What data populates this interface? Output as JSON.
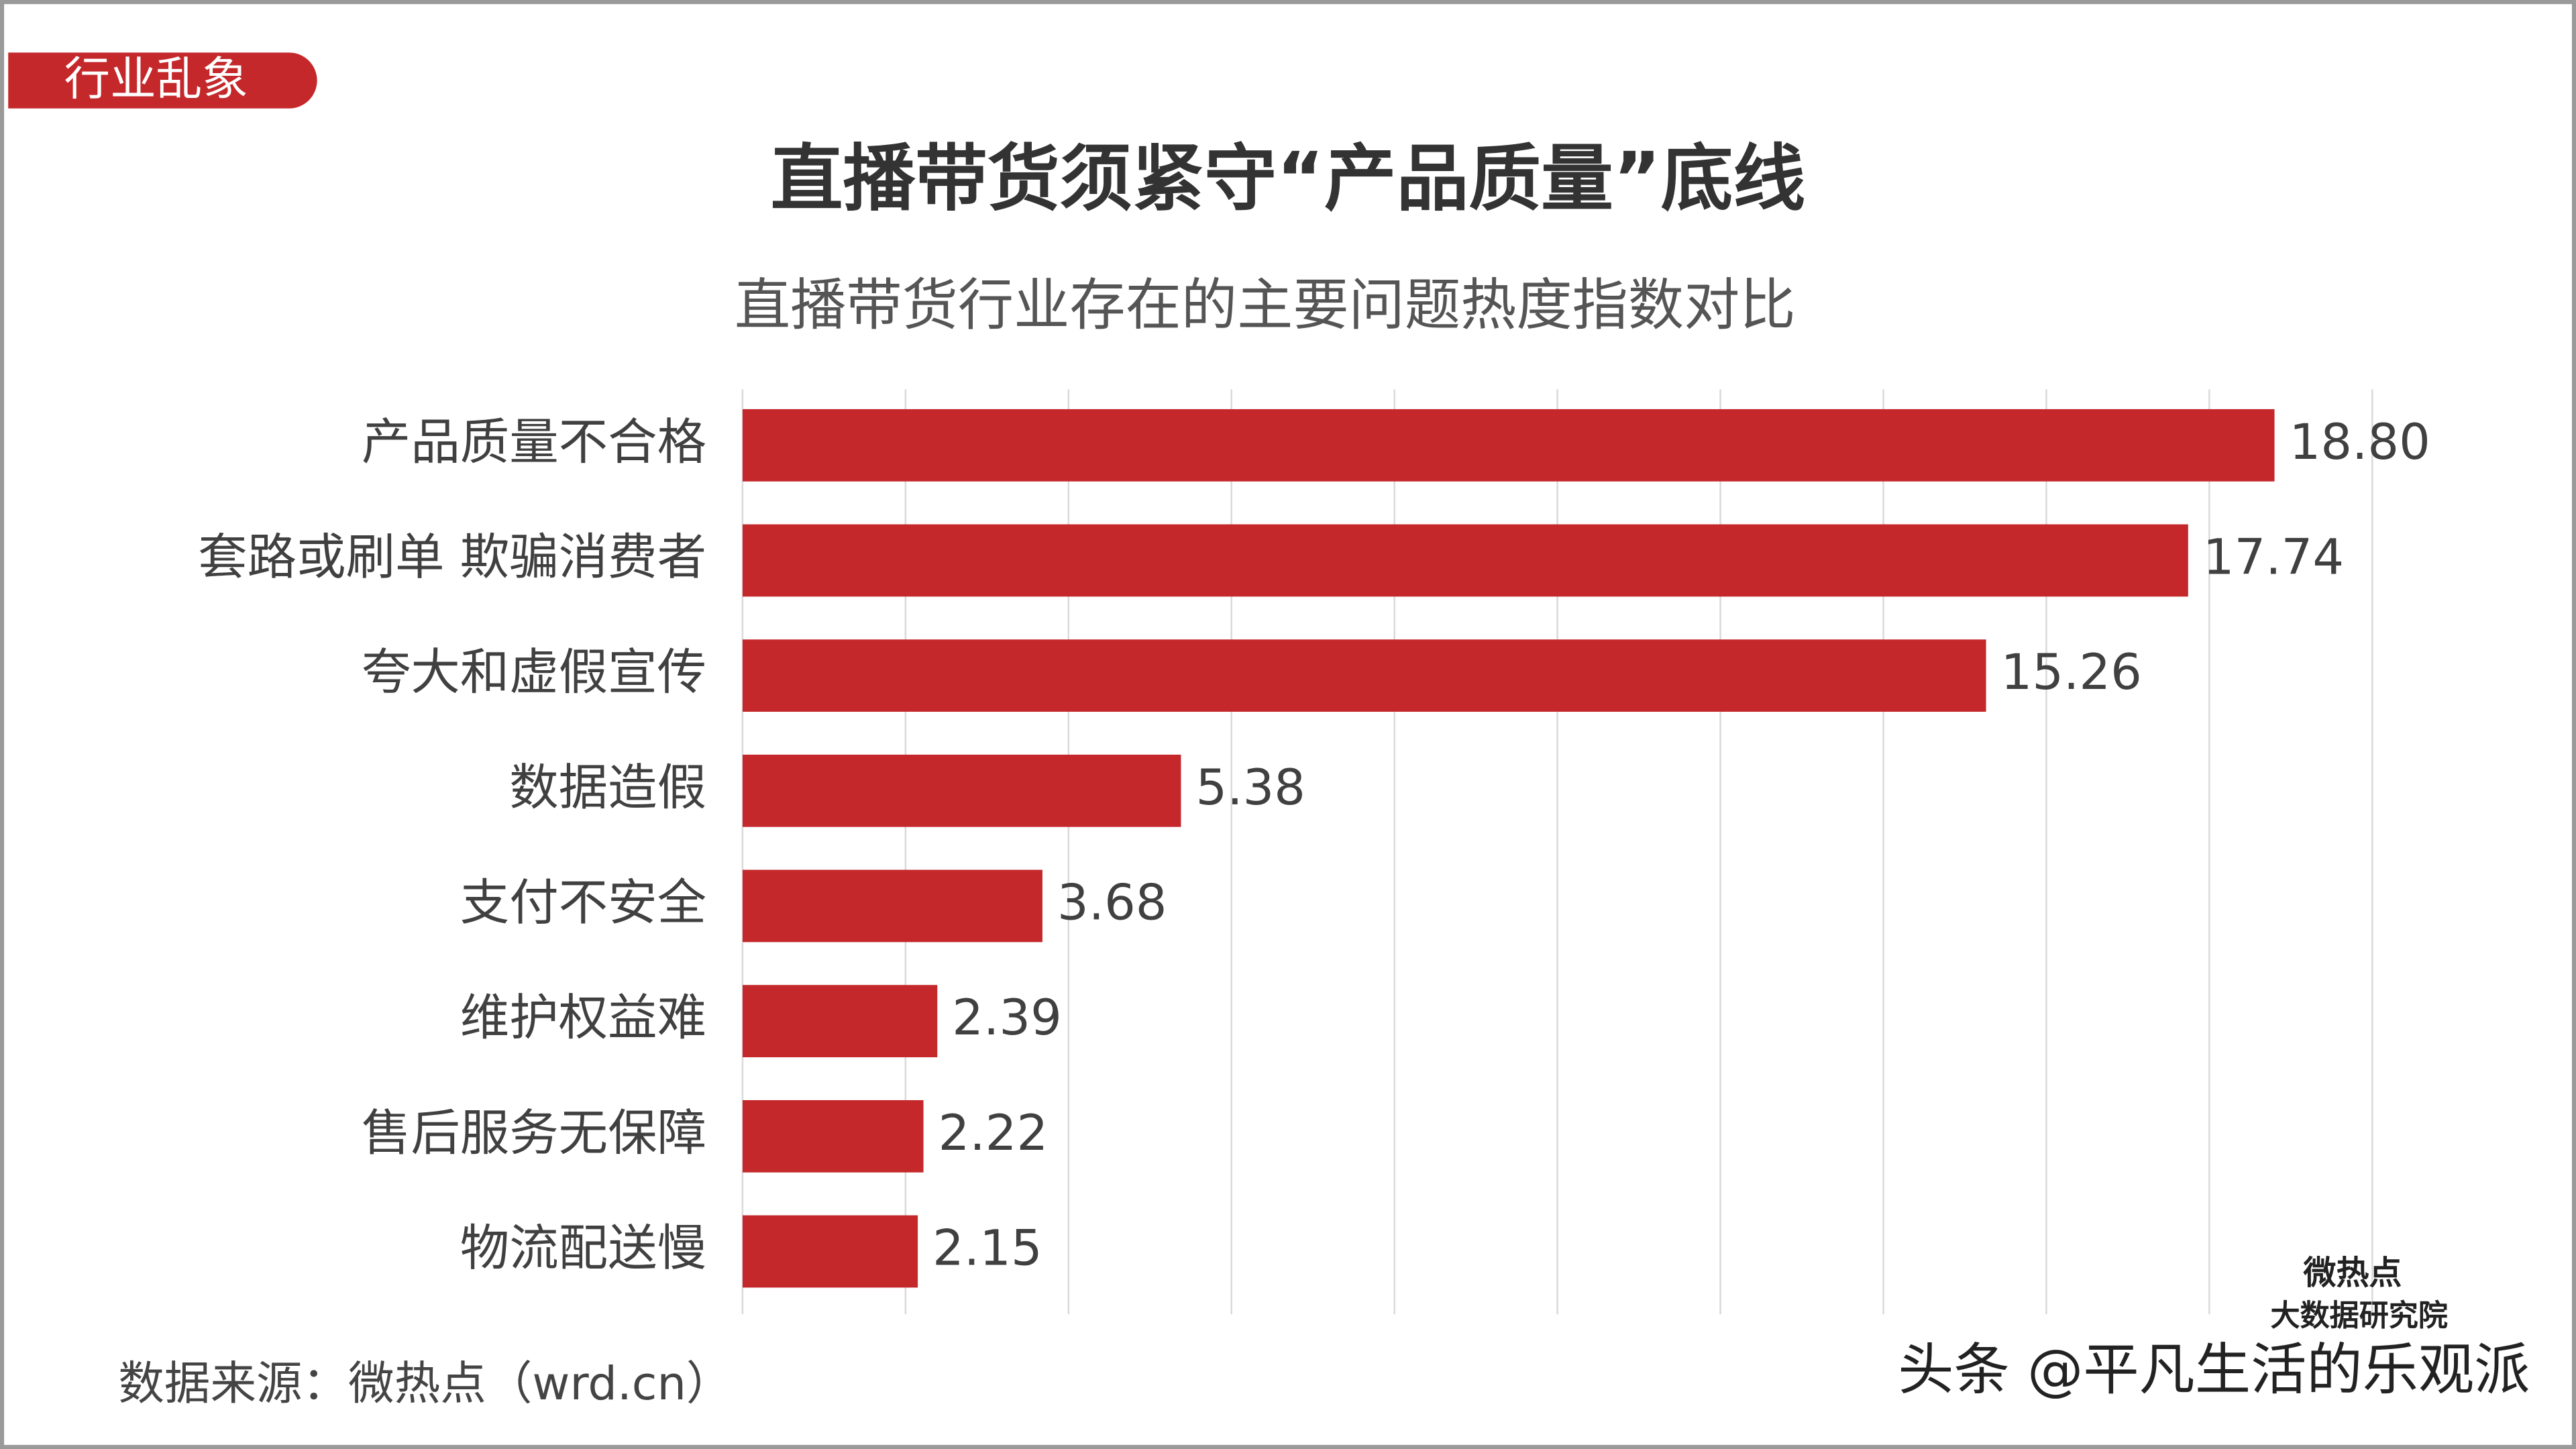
{
  "chart_data": {
    "type": "bar",
    "orientation": "horizontal",
    "badge": "行业乱象",
    "title": "直播带货须紧守“产品质量”底线",
    "subtitle": "直播带货行业存在的主要问题热度指数对比",
    "categories": [
      "产品质量不合格",
      "套路或刷单 欺骗消费者",
      "夸大和虚假宣传",
      "数据造假",
      "支付不安全",
      "维护权益难",
      "售后服务无保障",
      "物流配送慢"
    ],
    "values": [
      18.8,
      17.74,
      15.26,
      5.38,
      3.68,
      2.39,
      2.22,
      2.15
    ],
    "value_labels": [
      "18.80",
      "17.74",
      "15.26",
      "5.38",
      "3.68",
      "2.39",
      "2.22",
      "2.15"
    ],
    "color": "#c4282b",
    "xlim": [
      0,
      20
    ],
    "xticks": [
      0,
      2,
      4,
      6,
      8,
      10,
      12,
      14,
      16,
      18,
      20
    ],
    "grid": true,
    "source": "数据来源：微热点（wrd.cn）",
    "logo": [
      "微热点",
      "大数据研究院"
    ],
    "watermark": "头条 @平凡生活的乐观派"
  }
}
